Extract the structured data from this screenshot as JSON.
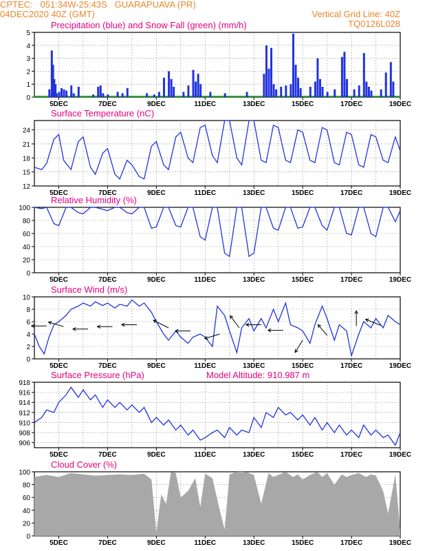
{
  "header": {
    "line1": "CPTEC:   051:34W-25:43S   GUARAPUAVA (PR)",
    "line2": "04DEC2020 40Z (GMT)",
    "grid_note": "Vertical Grid Line: 40Z",
    "code": "TQ0126L028"
  },
  "x_ticks": [
    "5DEC",
    "7DEC",
    "9DEC",
    "11DEC",
    "13DEC",
    "15DEC",
    "17DEC",
    "19DEC"
  ],
  "chart_data": [
    {
      "type": "bar",
      "title": "Precipitation (blue) and Snow Fall (green) (mm/h)",
      "ylim": [
        0,
        5
      ],
      "yticks": [
        "0",
        "1",
        "2",
        "3",
        "4",
        "5"
      ],
      "colors": {
        "precip": "#2233dd",
        "snow": "#22aa22"
      },
      "x_days": [
        4.6,
        4.7,
        4.75,
        4.8,
        4.85,
        4.9,
        5.0,
        5.1,
        5.2,
        5.3,
        5.5,
        5.6,
        5.8,
        6.4,
        6.6,
        6.7,
        6.8,
        7.0,
        7.4,
        7.6,
        7.8,
        8.6,
        8.9,
        9.1,
        9.3,
        9.5,
        9.6,
        9.7,
        10.1,
        10.3,
        10.5,
        10.6,
        10.7,
        10.8,
        11.2,
        11.8,
        12.7,
        13.4,
        13.5,
        13.6,
        13.7,
        13.8,
        13.9,
        14.1,
        14.3,
        14.5,
        14.6,
        14.7,
        14.8,
        14.9,
        15.3,
        15.5,
        15.6,
        15.7,
        15.8,
        16.0,
        16.3,
        16.6,
        16.7,
        16.8,
        17.1,
        17.3,
        17.5,
        17.6,
        17.7,
        17.8,
        18.2,
        18.4,
        18.6,
        18.7
      ],
      "values": [
        0.6,
        3.6,
        2.5,
        1.4,
        1.0,
        0.3,
        0.4,
        0.7,
        0.6,
        0.5,
        0.9,
        0.3,
        0.8,
        0.2,
        0.8,
        0.9,
        0.3,
        0.2,
        0.4,
        0.3,
        0.7,
        0.3,
        0.2,
        0.4,
        1.5,
        2.0,
        1.4,
        0.8,
        0.4,
        0.9,
        2.1,
        1.2,
        1.8,
        1.0,
        0.4,
        0.3,
        0.4,
        1.8,
        4.0,
        2.2,
        3.8,
        1.0,
        0.6,
        0.8,
        0.9,
        1.0,
        4.9,
        2.5,
        1.5,
        0.7,
        0.8,
        1.2,
        3.0,
        1.4,
        0.8,
        0.4,
        0.6,
        3.1,
        3.5,
        1.4,
        0.6,
        0.9,
        3.4,
        1.2,
        0.8,
        0.5,
        0.6,
        1.9,
        2.7,
        1.2
      ]
    },
    {
      "type": "line",
      "title": "Surface Temperature (nC)",
      "ylim": [
        12,
        26
      ],
      "yticks": [
        "12",
        "15",
        "18",
        "21",
        "24"
      ],
      "color": "#2233dd",
      "x_days": [
        4.0,
        4.3,
        4.5,
        4.8,
        5.0,
        5.2,
        5.5,
        5.8,
        6.0,
        6.3,
        6.5,
        6.8,
        7.0,
        7.3,
        7.5,
        7.8,
        8.0,
        8.3,
        8.5,
        8.8,
        9.0,
        9.3,
        9.5,
        9.8,
        10.0,
        10.3,
        10.5,
        10.8,
        11.0,
        11.3,
        11.5,
        11.8,
        12.0,
        12.3,
        12.5,
        12.8,
        13.0,
        13.3,
        13.5,
        13.8,
        14.0,
        14.3,
        14.5,
        14.8,
        15.0,
        15.3,
        15.5,
        15.8,
        16.0,
        16.3,
        16.5,
        16.8,
        17.0,
        17.3,
        17.5,
        17.8,
        18.0,
        18.3,
        18.5,
        18.8,
        19.0
      ],
      "values": [
        16.0,
        15.5,
        16.8,
        22.0,
        23.0,
        17.5,
        15.5,
        21.5,
        22.5,
        16.0,
        14.5,
        19.0,
        20.0,
        14.5,
        13.5,
        17.5,
        16.5,
        14.0,
        13.5,
        20.5,
        21.5,
        16.5,
        15.5,
        22.5,
        23.5,
        18.0,
        17.0,
        24.5,
        25.0,
        18.5,
        17.0,
        26.5,
        26.5,
        18.0,
        16.5,
        27.0,
        26.0,
        17.5,
        17.0,
        25.0,
        24.5,
        17.5,
        17.0,
        24.0,
        23.5,
        17.5,
        17.0,
        24.5,
        24.0,
        17.0,
        16.5,
        23.5,
        23.0,
        16.5,
        16.0,
        23.0,
        22.5,
        17.5,
        17.0,
        22.5,
        19.5
      ]
    },
    {
      "type": "line",
      "title": "Relative Humidity (%)",
      "ylim": [
        0,
        100
      ],
      "yticks": [
        "0",
        "20",
        "40",
        "60",
        "80",
        "100"
      ],
      "color": "#2233dd",
      "x_days": [
        4.0,
        4.3,
        4.5,
        4.8,
        5.0,
        5.3,
        5.5,
        5.8,
        6.0,
        6.3,
        6.5,
        6.8,
        7.0,
        7.3,
        7.5,
        7.8,
        8.0,
        8.3,
        8.5,
        8.8,
        9.0,
        9.3,
        9.5,
        9.8,
        10.0,
        10.3,
        10.5,
        10.8,
        11.0,
        11.3,
        11.5,
        11.8,
        12.0,
        12.3,
        12.5,
        12.8,
        13.0,
        13.3,
        13.5,
        13.8,
        14.0,
        14.3,
        14.5,
        14.8,
        15.0,
        15.3,
        15.5,
        15.8,
        16.0,
        16.3,
        16.5,
        16.8,
        17.0,
        17.3,
        17.5,
        17.8,
        18.0,
        18.3,
        18.5,
        18.8,
        19.0
      ],
      "values": [
        100,
        98,
        100,
        75,
        72,
        100,
        100,
        92,
        90,
        100,
        100,
        97,
        95,
        100,
        100,
        92,
        90,
        100,
        100,
        68,
        70,
        100,
        100,
        72,
        70,
        100,
        100,
        55,
        50,
        100,
        100,
        30,
        25,
        100,
        100,
        25,
        30,
        100,
        100,
        68,
        65,
        100,
        100,
        68,
        70,
        100,
        100,
        72,
        65,
        100,
        100,
        60,
        58,
        100,
        100,
        60,
        55,
        100,
        100,
        78,
        95
      ]
    },
    {
      "type": "line",
      "title": "Surface Wind (m/s)",
      "ylim": [
        0,
        10
      ],
      "yticks": [
        "0",
        "2",
        "4",
        "6",
        "8",
        "10"
      ],
      "color": "#2233dd",
      "x_days": [
        4.0,
        4.2,
        4.4,
        4.6,
        4.8,
        5.0,
        5.3,
        5.5,
        5.8,
        6.0,
        6.3,
        6.5,
        6.8,
        7.0,
        7.3,
        7.5,
        7.8,
        8.0,
        8.3,
        8.5,
        8.8,
        9.0,
        9.3,
        9.5,
        9.8,
        10.0,
        10.3,
        10.5,
        10.8,
        11.0,
        11.3,
        11.5,
        11.8,
        12.0,
        12.3,
        12.5,
        12.8,
        13.0,
        13.3,
        13.5,
        13.8,
        14.0,
        14.3,
        14.5,
        14.8,
        15.0,
        15.3,
        15.5,
        15.8,
        16.0,
        16.3,
        16.5,
        16.8,
        17.0,
        17.3,
        17.5,
        17.8,
        18.0,
        18.3,
        18.5,
        18.8,
        19.0
      ],
      "values": [
        4.0,
        2.0,
        0.8,
        3.5,
        5.5,
        6.0,
        7.0,
        8.0,
        8.5,
        9.0,
        8.5,
        9.2,
        8.6,
        9.0,
        8.2,
        8.8,
        8.5,
        9.5,
        8.5,
        9.0,
        7.5,
        6.0,
        4.0,
        3.0,
        4.5,
        3.5,
        2.5,
        3.5,
        4.0,
        3.5,
        2.0,
        8.5,
        7.0,
        4.5,
        1.0,
        5.0,
        6.5,
        4.5,
        6.5,
        5.0,
        8.0,
        6.0,
        9.0,
        5.5,
        5.0,
        4.5,
        2.5,
        5.5,
        8.5,
        6.5,
        3.0,
        5.5,
        4.5,
        0.5,
        4.0,
        6.0,
        5.0,
        6.5,
        5.0,
        7.0,
        6.0,
        5.5
      ],
      "arrows": [
        {
          "day": 4.5,
          "val": 5.3,
          "dx": -1,
          "dy": 0
        },
        {
          "day": 5.2,
          "val": 5.2,
          "dx": -1,
          "dy": 0.3
        },
        {
          "day": 6.2,
          "val": 4.8,
          "dx": -1,
          "dy": 0
        },
        {
          "day": 7.2,
          "val": 5.2,
          "dx": -1,
          "dy": 0
        },
        {
          "day": 8.2,
          "val": 5.5,
          "dx": -1,
          "dy": 0
        },
        {
          "day": 9.5,
          "val": 5.0,
          "dx": -1,
          "dy": 0.5
        },
        {
          "day": 10.4,
          "val": 4.5,
          "dx": -1,
          "dy": 0
        },
        {
          "day": 11.6,
          "val": 4.0,
          "dx": -1,
          "dy": -0.3
        },
        {
          "day": 12.4,
          "val": 5.0,
          "dx": -0.6,
          "dy": 0.8
        },
        {
          "day": 13.3,
          "val": 5.5,
          "dx": -1,
          "dy": 0
        },
        {
          "day": 14.2,
          "val": 4.6,
          "dx": -1,
          "dy": 0
        },
        {
          "day": 15.0,
          "val": 3.0,
          "dx": -0.5,
          "dy": -0.8
        },
        {
          "day": 16.0,
          "val": 3.8,
          "dx": -0.6,
          "dy": 0.7
        },
        {
          "day": 17.2,
          "val": 5.3,
          "dx": 0,
          "dy": 1
        },
        {
          "day": 18.2,
          "val": 5.4,
          "dx": -1,
          "dy": 0.4
        }
      ]
    },
    {
      "type": "line",
      "title": "Surface Pressure (hPa)",
      "subtitle": "Model Altitude: 910.987 m",
      "ylim": [
        905,
        918
      ],
      "yticks": [
        "906",
        "908",
        "910",
        "912",
        "914",
        "916",
        "918"
      ],
      "color": "#2233dd",
      "x_days": [
        4.0,
        4.3,
        4.5,
        4.8,
        5.0,
        5.3,
        5.5,
        5.8,
        6.0,
        6.3,
        6.5,
        6.8,
        7.0,
        7.3,
        7.5,
        7.8,
        8.0,
        8.3,
        8.5,
        8.8,
        9.0,
        9.3,
        9.5,
        9.8,
        10.0,
        10.3,
        10.5,
        10.8,
        11.0,
        11.3,
        11.5,
        11.8,
        12.0,
        12.3,
        12.5,
        12.8,
        13.0,
        13.3,
        13.5,
        13.8,
        14.0,
        14.3,
        14.5,
        14.8,
        15.0,
        15.3,
        15.5,
        15.8,
        16.0,
        16.3,
        16.5,
        16.8,
        17.0,
        17.3,
        17.5,
        17.8,
        18.0,
        18.3,
        18.5,
        18.8,
        19.0
      ],
      "values": [
        910.0,
        911.0,
        912.5,
        912.0,
        914.0,
        915.5,
        917.0,
        915.0,
        916.5,
        914.5,
        915.5,
        913.0,
        914.5,
        913.0,
        914.0,
        912.5,
        913.5,
        912.0,
        913.0,
        910.0,
        911.0,
        909.5,
        910.5,
        908.5,
        909.5,
        907.5,
        908.5,
        906.5,
        907.0,
        908.0,
        908.5,
        907.0,
        909.0,
        907.5,
        908.5,
        908.0,
        911.0,
        909.0,
        912.0,
        911.0,
        913.0,
        911.5,
        912.0,
        910.5,
        911.5,
        909.5,
        911.0,
        908.5,
        910.0,
        908.0,
        909.5,
        907.5,
        908.5,
        907.0,
        909.5,
        907.5,
        908.5,
        907.0,
        907.5,
        905.5,
        908.0
      ]
    },
    {
      "type": "area",
      "title": "Cloud Cover (%)",
      "ylim": [
        0,
        100
      ],
      "yticks": [
        "0",
        "20",
        "40",
        "60",
        "80",
        "100"
      ],
      "color": "#a8a8a8",
      "x_days": [
        4.0,
        4.5,
        5.0,
        5.5,
        6.0,
        6.5,
        7.0,
        7.5,
        8.0,
        8.5,
        8.8,
        9.0,
        9.2,
        9.4,
        9.6,
        9.8,
        10.0,
        10.3,
        10.6,
        10.8,
        11.0,
        11.3,
        11.6,
        11.8,
        12.0,
        12.3,
        12.6,
        12.8,
        13.0,
        13.3,
        13.6,
        13.8,
        14.0,
        14.3,
        14.6,
        14.8,
        15.0,
        15.3,
        15.6,
        15.8,
        16.0,
        16.3,
        16.6,
        16.8,
        17.0,
        17.3,
        17.6,
        17.8,
        18.0,
        18.3,
        18.5,
        18.8,
        19.0
      ],
      "values": [
        92,
        95,
        92,
        98,
        96,
        94,
        95,
        96,
        95,
        97,
        88,
        5,
        65,
        50,
        100,
        98,
        60,
        70,
        90,
        45,
        97,
        90,
        40,
        10,
        96,
        100,
        100,
        98,
        95,
        50,
        98,
        92,
        95,
        100,
        92,
        96,
        88,
        95,
        100,
        92,
        98,
        80,
        96,
        92,
        95,
        98,
        92,
        96,
        94,
        70,
        35,
        96,
        8
      ]
    }
  ]
}
